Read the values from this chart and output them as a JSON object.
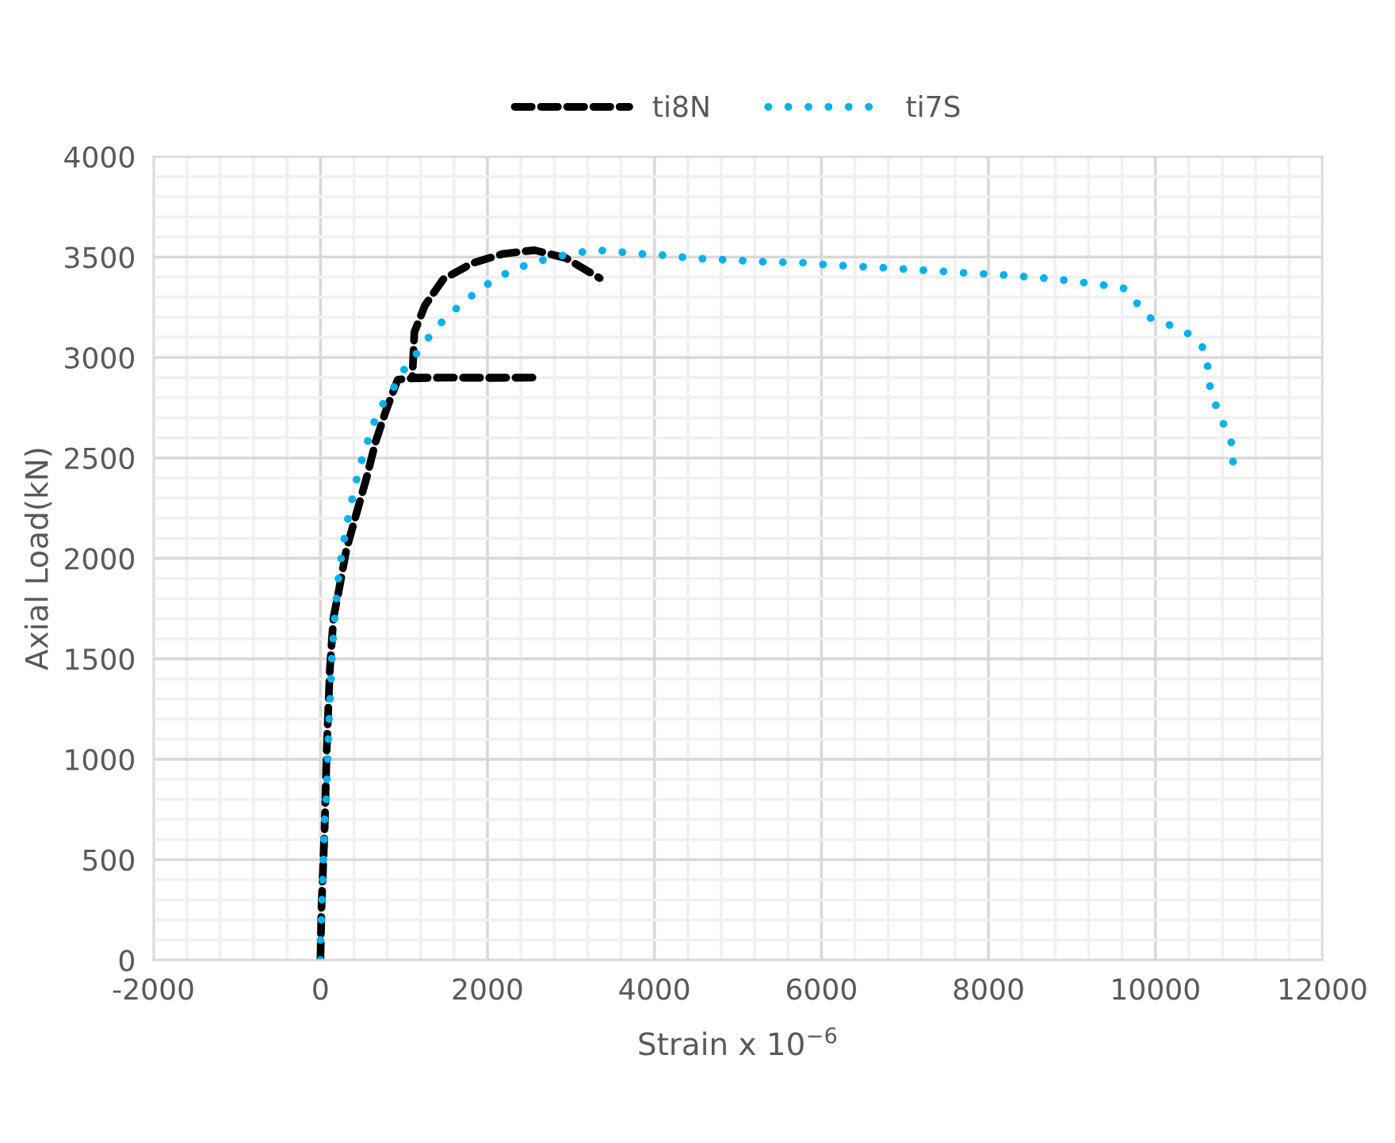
{
  "chart_data": {
    "type": "line",
    "xlabel": "Strain x 10$^{−6}$",
    "ylabel": "Axial Load(kN)",
    "xlim": [
      -2000,
      12000
    ],
    "xticks": [
      -2000,
      0,
      2000,
      4000,
      6000,
      8000,
      10000,
      12000
    ],
    "ylim": [
      0,
      4000
    ],
    "yticks": [
      0,
      500,
      1000,
      1500,
      2000,
      2500,
      3000,
      3500,
      4000
    ],
    "grid": true,
    "legend": "top",
    "marker": "none",
    "series": [
      {
        "name": "ti8N",
        "color": "#000000",
        "line_style": "dashed",
        "x": [
          0,
          12,
          50,
          75,
          112,
          156,
          219,
          312,
          437,
          562,
          656,
          781,
          925,
          1031,
          1500,
          2000,
          2594,
          1100,
          1125,
          1250,
          1469,
          1812,
          2187,
          2562,
          2937,
          3344
        ],
        "values": [
          0,
          258,
          653,
          1047,
          1442,
          1705,
          1837,
          2047,
          2232,
          2416,
          2574,
          2732,
          2889,
          2895,
          2900,
          2898,
          2900,
          2900,
          3126,
          3258,
          3389,
          3468,
          3516,
          3534,
          3495,
          3395
        ]
      },
      {
        "name": "ti7S",
        "color": "#00b0f0",
        "line_style": "dotted",
        "x": [
          0,
          0,
          12,
          25,
          44,
          50,
          69,
          87,
          106,
          119,
          137,
          156,
          175,
          225,
          262,
          306,
          356,
          412,
          475,
          550,
          631,
          744,
          881,
          1006,
          1169,
          1325,
          1494,
          1688,
          1887,
          2094,
          2325,
          2562,
          2812,
          3062,
          3312,
          3562,
          3812,
          4056,
          4311,
          4559,
          4820,
          5068,
          5323,
          5578,
          5826,
          6081,
          6335,
          6590,
          6839,
          7093,
          7348,
          7603,
          7851,
          8106,
          8361,
          8609,
          8864,
          9113,
          9367,
          9616,
          9777,
          9939,
          10174,
          10404,
          10584,
          10634,
          10658,
          10751,
          10851,
          10950,
          10907
        ],
        "values": [
          0,
          95,
          197,
          384,
          595,
          697,
          803,
          1000,
          1218,
          1324,
          1513,
          1618,
          1726,
          1937,
          2042,
          2147,
          2253,
          2358,
          2463,
          2563,
          2668,
          2766,
          2853,
          2942,
          3029,
          3116,
          3195,
          3266,
          3332,
          3392,
          3439,
          3474,
          3500,
          3521,
          3534,
          3526,
          3516,
          3511,
          3500,
          3492,
          3487,
          3482,
          3476,
          3474,
          3471,
          3461,
          3455,
          3450,
          3445,
          3437,
          3432,
          3424,
          3418,
          3413,
          3405,
          3397,
          3387,
          3374,
          3361,
          3345,
          3271,
          3197,
          3161,
          3116,
          3042,
          2937,
          2832,
          2732,
          2634,
          2534,
          2429
        ]
      }
    ]
  }
}
